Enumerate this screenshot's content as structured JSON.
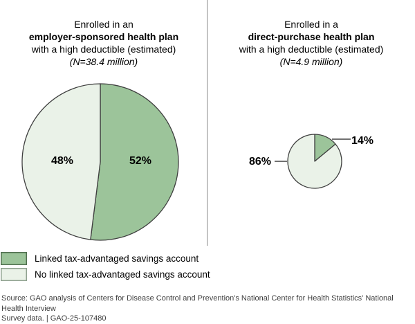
{
  "panels": [
    {
      "title_line1": "Enrolled in an",
      "title_line2": "employer-sponsored health plan",
      "title_line3": "with a high deductible (estimated)",
      "n_label": "(N=38.4 million)"
    },
    {
      "title_line1": "Enrolled in a",
      "title_line2": "direct-purchase health plan",
      "title_line3": "with a high deductible (estimated)",
      "n_label": "(N=4.9 million)"
    }
  ],
  "chart_data": [
    {
      "type": "pie",
      "title": "Enrolled in an employer-sponsored health plan with a high deductible (estimated)",
      "population": "N=38.4 million",
      "unit": "%",
      "start_angle_deg": 0,
      "direction": "clockwise",
      "slices": [
        {
          "label": "Linked tax-advantaged savings account",
          "value_pct": 52,
          "display": "52%",
          "color": "#9cc49a"
        },
        {
          "label": "No linked tax-advantaged savings account",
          "value_pct": 48,
          "display": "48%",
          "color": "#eaf2e8"
        }
      ]
    },
    {
      "type": "pie",
      "title": "Enrolled in a direct-purchase health plan with a high deductible (estimated)",
      "population": "N=4.9 million",
      "unit": "%",
      "start_angle_deg": 0,
      "direction": "clockwise",
      "slices": [
        {
          "label": "Linked tax-advantaged savings account",
          "value_pct": 14,
          "display": "14%",
          "color": "#9cc49a"
        },
        {
          "label": "No linked tax-advantaged savings account",
          "value_pct": 86,
          "display": "86%",
          "color": "#eaf2e8"
        }
      ]
    }
  ],
  "legend": {
    "items": [
      {
        "label": "Linked tax-advantaged savings account",
        "color": "#9cc49a",
        "border_color": "#50704f"
      },
      {
        "label": "No linked tax-advantaged savings account",
        "color": "#eaf2e8",
        "border_color": "#90a290"
      }
    ]
  },
  "source": {
    "line1": "Source: GAO analysis of Centers for Disease Control and Prevention's National Center for Health Statistics' National Health Interview",
    "line2": "Survey data.  |  GAO-25-107480"
  },
  "colors": {
    "slice_linked": "#9cc49a",
    "slice_not_linked": "#eaf2e8",
    "pie_outline": "#3f3f3f",
    "divider": "#8a8a8a",
    "leader_line": "#1a1a1a"
  }
}
